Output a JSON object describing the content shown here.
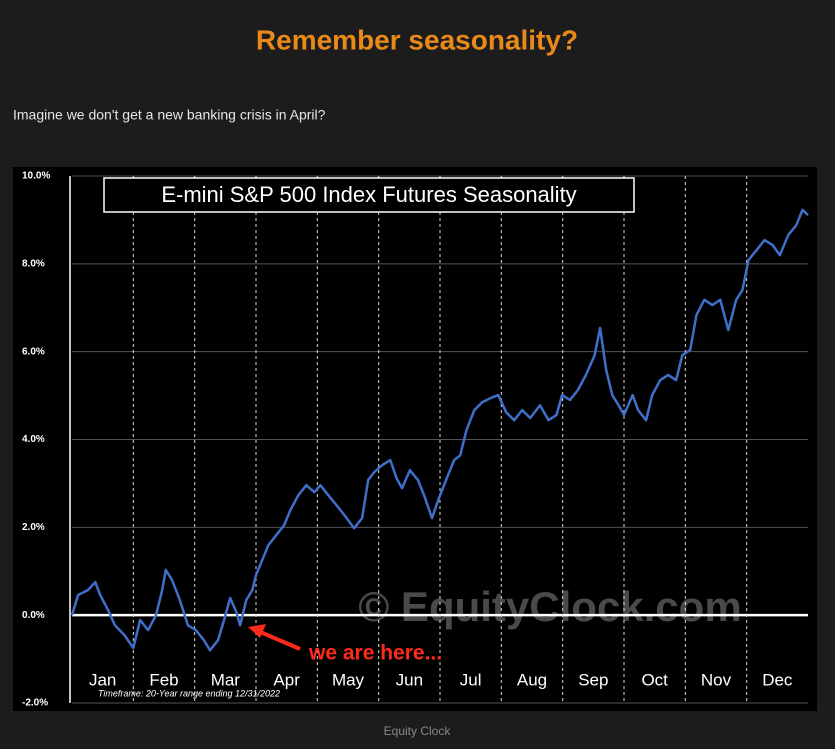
{
  "page": {
    "title": "Remember seasonality?",
    "subtitle": "Imagine we don't get a new banking crisis in April?",
    "caption": "Equity Clock"
  },
  "chart_data": {
    "type": "line",
    "title": "E-mini S&P 500 Index Futures Seasonality",
    "months": [
      "Jan",
      "Feb",
      "Mar",
      "Apr",
      "May",
      "Jun",
      "Jul",
      "Aug",
      "Sep",
      "Oct",
      "Nov",
      "Dec"
    ],
    "annotation": "we are here...",
    "watermark": "© EquityClock.com",
    "footnote": "Timeframe:   20-Year range ending 12/31/2022",
    "color": "#3f6fc8",
    "xlim": [
      0,
      12
    ],
    "xticks": [
      1,
      2,
      3,
      4,
      5,
      6,
      7,
      8,
      9,
      10,
      11
    ],
    "ylim": [
      -2,
      10
    ],
    "yticks": [
      {
        "value": -2,
        "label": "-2.0%"
      },
      {
        "value": 0,
        "label": "0.0%"
      },
      {
        "value": 2,
        "label": "2.0%"
      },
      {
        "value": 4,
        "label": "4.0%"
      },
      {
        "value": 6,
        "label": "6.0%"
      },
      {
        "value": 8,
        "label": "8.0%"
      },
      {
        "value": 10,
        "label": "10.0%"
      }
    ],
    "grid": true,
    "x": [
      0,
      0.1,
      0.26,
      0.38,
      0.46,
      0.59,
      0.7,
      0.86,
      1.0,
      1.11,
      1.24,
      1.37,
      1.47,
      1.53,
      1.63,
      1.76,
      1.89,
      2.02,
      2.15,
      2.25,
      2.38,
      2.48,
      2.58,
      2.68,
      2.74,
      2.84,
      2.94,
      3.0,
      3.1,
      3.2,
      3.33,
      3.46,
      3.56,
      3.69,
      3.82,
      3.95,
      4.05,
      4.18,
      4.31,
      4.44,
      4.6,
      4.73,
      4.83,
      4.93,
      5.06,
      5.19,
      5.29,
      5.38,
      5.51,
      5.64,
      5.74,
      5.87,
      5.97,
      6.1,
      6.23,
      6.33,
      6.43,
      6.56,
      6.69,
      6.82,
      6.95,
      7.08,
      7.21,
      7.34,
      7.47,
      7.63,
      7.77,
      7.9,
      7.99,
      8.12,
      8.25,
      8.38,
      8.52,
      8.61,
      8.71,
      8.81,
      8.91,
      9.0,
      9.14,
      9.23,
      9.36,
      9.46,
      9.59,
      9.72,
      9.85,
      9.95,
      10.08,
      10.18,
      10.31,
      10.44,
      10.57,
      10.7,
      10.83,
      10.93,
      11.03,
      11.16,
      11.29,
      11.42,
      11.54,
      11.68,
      11.81,
      11.91,
      12.0
    ],
    "values": [
      0,
      0.46,
      0.57,
      0.75,
      0.46,
      0.11,
      -0.23,
      -0.46,
      -0.75,
      -0.11,
      -0.34,
      0,
      0.57,
      1.03,
      0.8,
      0.34,
      -0.23,
      -0.34,
      -0.57,
      -0.8,
      -0.57,
      -0.11,
      0.39,
      0.07,
      -0.23,
      0.34,
      0.57,
      0.91,
      1.25,
      1.59,
      1.82,
      2.05,
      2.39,
      2.73,
      2.96,
      2.8,
      2.96,
      2.73,
      2.51,
      2.28,
      1.98,
      2.21,
      3.08,
      3.26,
      3.42,
      3.53,
      3.12,
      2.89,
      3.3,
      3.08,
      2.73,
      2.21,
      2.62,
      3.08,
      3.53,
      3.64,
      4.21,
      4.67,
      4.85,
      4.94,
      5.01,
      4.62,
      4.44,
      4.67,
      4.49,
      4.78,
      4.44,
      4.56,
      5.01,
      4.9,
      5.13,
      5.47,
      5.92,
      6.54,
      5.58,
      5.01,
      4.78,
      4.56,
      5.01,
      4.67,
      4.44,
      5.01,
      5.35,
      5.47,
      5.35,
      5.92,
      6.04,
      6.83,
      7.18,
      7.06,
      7.18,
      6.49,
      7.18,
      7.4,
      8.09,
      8.31,
      8.54,
      8.43,
      8.2,
      8.66,
      8.88,
      9.23,
      9.11
    ]
  }
}
